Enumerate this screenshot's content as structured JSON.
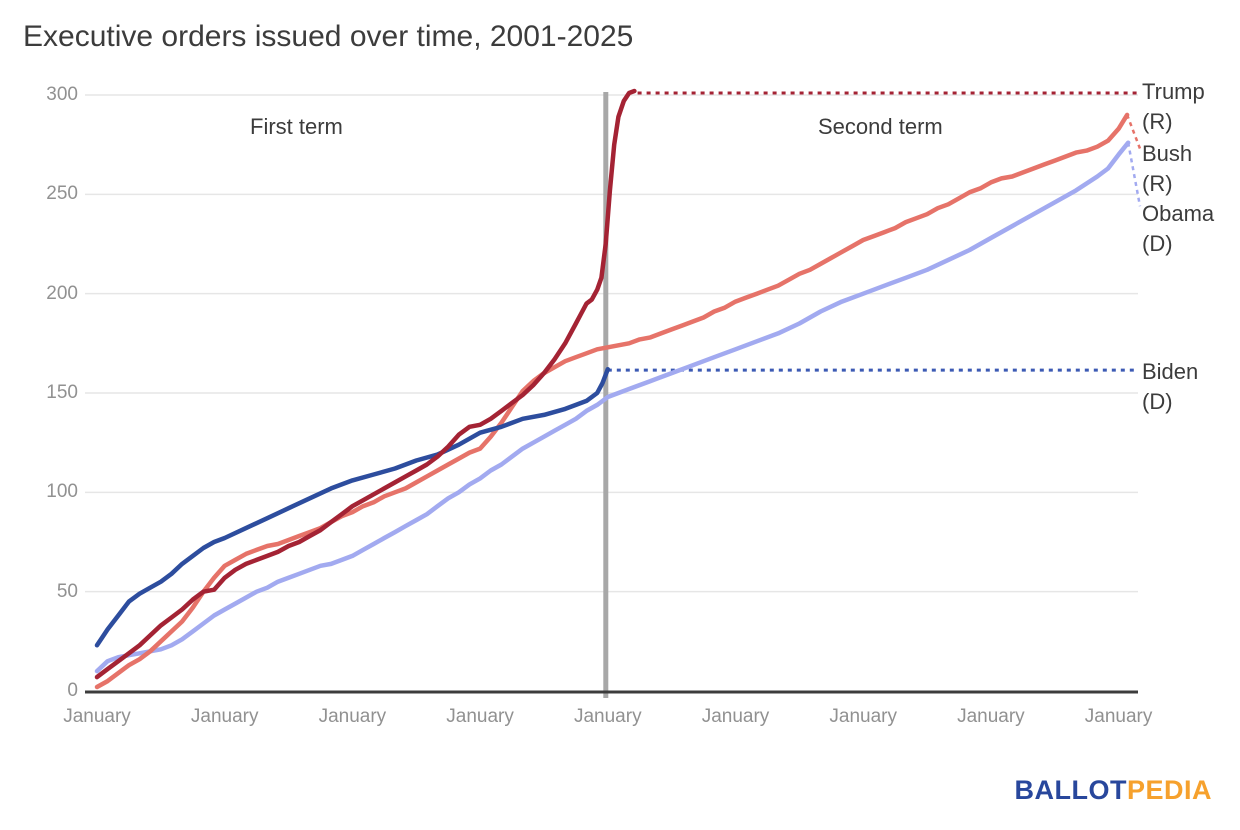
{
  "title": "Executive orders issued over time, 2001-2025",
  "annotations": {
    "first_term": "First term",
    "second_term": "Second term"
  },
  "logo": {
    "part1": "BALLOT",
    "part2": "PEDIA"
  },
  "chart_data": {
    "type": "line",
    "title": "Executive orders issued over time, 2001-2025",
    "xlabel": "",
    "ylabel": "",
    "x_unit": "months since inauguration",
    "x_tick_labels": [
      "January",
      "January",
      "January",
      "January",
      "January",
      "January",
      "January",
      "January",
      "January"
    ],
    "y_ticks": [
      0,
      50,
      100,
      150,
      200,
      250,
      300
    ],
    "ylim": [
      0,
      300
    ],
    "grid": true,
    "divider_month": 48,
    "colors": {
      "trump": "#a42334",
      "bush": "#e67369",
      "obama": "#a2aaf0",
      "biden": "#2d4d9e",
      "biden_dotted": "#3c5ab4",
      "divider": "#a8a8a8",
      "gridline": "#e6e6e6",
      "axis": "#3c3c3c",
      "tick_text": "#919191"
    },
    "series": [
      {
        "name": "trump",
        "name_label": "Trump",
        "party_label": "(R)",
        "color": "#a42334",
        "points": [
          [
            0,
            7
          ],
          [
            1,
            11
          ],
          [
            2,
            15
          ],
          [
            3,
            19
          ],
          [
            4,
            23
          ],
          [
            5,
            28
          ],
          [
            6,
            33
          ],
          [
            7,
            37
          ],
          [
            8,
            41
          ],
          [
            9,
            46
          ],
          [
            10,
            50
          ],
          [
            11,
            51
          ],
          [
            12,
            57
          ],
          [
            13,
            61
          ],
          [
            14,
            64
          ],
          [
            15,
            66
          ],
          [
            16,
            68
          ],
          [
            17,
            70
          ],
          [
            18,
            73
          ],
          [
            19,
            75
          ],
          [
            20,
            78
          ],
          [
            21,
            81
          ],
          [
            22,
            85
          ],
          [
            23,
            89
          ],
          [
            24,
            93
          ],
          [
            25,
            96
          ],
          [
            26,
            99
          ],
          [
            27,
            102
          ],
          [
            28,
            105
          ],
          [
            29,
            108
          ],
          [
            30,
            111
          ],
          [
            31,
            114
          ],
          [
            32,
            118
          ],
          [
            33,
            123
          ],
          [
            34,
            129
          ],
          [
            35,
            133
          ],
          [
            36,
            134
          ],
          [
            37,
            137
          ],
          [
            38,
            141
          ],
          [
            39,
            145
          ],
          [
            40,
            149
          ],
          [
            41,
            154
          ],
          [
            42,
            160
          ],
          [
            43,
            167
          ],
          [
            44,
            175
          ],
          [
            45,
            185
          ],
          [
            45.5,
            190
          ],
          [
            46,
            195
          ],
          [
            46.5,
            197
          ],
          [
            47,
            202
          ],
          [
            47.4,
            208
          ],
          [
            47.8,
            225
          ],
          [
            48.2,
            252
          ],
          [
            48.6,
            275
          ],
          [
            49,
            289
          ],
          [
            49.5,
            297
          ],
          [
            50,
            301
          ],
          [
            50.5,
            302
          ]
        ],
        "extension": {
          "kind": "dotted-horizontal",
          "from_month": 50.8,
          "to_month": 97.7,
          "value": 301
        }
      },
      {
        "name": "bush",
        "name_label": "Bush",
        "party_label": "(R)",
        "color": "#e67369",
        "points": [
          [
            0,
            2
          ],
          [
            1,
            5
          ],
          [
            2,
            9
          ],
          [
            3,
            13
          ],
          [
            4,
            16
          ],
          [
            5,
            20
          ],
          [
            6,
            25
          ],
          [
            7,
            30
          ],
          [
            8,
            35
          ],
          [
            9,
            42
          ],
          [
            10,
            50
          ],
          [
            11,
            57
          ],
          [
            12,
            63
          ],
          [
            13,
            66
          ],
          [
            14,
            69
          ],
          [
            15,
            71
          ],
          [
            16,
            73
          ],
          [
            17,
            74
          ],
          [
            18,
            76
          ],
          [
            19,
            78
          ],
          [
            20,
            80
          ],
          [
            21,
            82
          ],
          [
            22,
            85
          ],
          [
            23,
            88
          ],
          [
            24,
            90
          ],
          [
            25,
            93
          ],
          [
            26,
            95
          ],
          [
            27,
            98
          ],
          [
            28,
            100
          ],
          [
            29,
            102
          ],
          [
            30,
            105
          ],
          [
            31,
            108
          ],
          [
            32,
            111
          ],
          [
            33,
            114
          ],
          [
            34,
            117
          ],
          [
            35,
            120
          ],
          [
            36,
            122
          ],
          [
            37,
            128
          ],
          [
            38,
            135
          ],
          [
            39,
            143
          ],
          [
            40,
            151
          ],
          [
            41,
            156
          ],
          [
            42,
            160
          ],
          [
            43,
            163
          ],
          [
            44,
            166
          ],
          [
            45,
            168
          ],
          [
            46,
            170
          ],
          [
            47,
            172
          ],
          [
            48,
            173
          ],
          [
            49,
            174
          ],
          [
            50,
            175
          ],
          [
            51,
            177
          ],
          [
            52,
            178
          ],
          [
            53,
            180
          ],
          [
            54,
            182
          ],
          [
            55,
            184
          ],
          [
            56,
            186
          ],
          [
            57,
            188
          ],
          [
            58,
            191
          ],
          [
            59,
            193
          ],
          [
            60,
            196
          ],
          [
            61,
            198
          ],
          [
            62,
            200
          ],
          [
            63,
            202
          ],
          [
            64,
            204
          ],
          [
            65,
            207
          ],
          [
            66,
            210
          ],
          [
            67,
            212
          ],
          [
            68,
            215
          ],
          [
            69,
            218
          ],
          [
            70,
            221
          ],
          [
            71,
            224
          ],
          [
            72,
            227
          ],
          [
            73,
            229
          ],
          [
            74,
            231
          ],
          [
            75,
            233
          ],
          [
            76,
            236
          ],
          [
            77,
            238
          ],
          [
            78,
            240
          ],
          [
            79,
            243
          ],
          [
            80,
            245
          ],
          [
            81,
            248
          ],
          [
            82,
            251
          ],
          [
            83,
            253
          ],
          [
            84,
            256
          ],
          [
            85,
            258
          ],
          [
            86,
            259
          ],
          [
            87,
            261
          ],
          [
            88,
            263
          ],
          [
            89,
            265
          ],
          [
            90,
            267
          ],
          [
            91,
            269
          ],
          [
            92,
            271
          ],
          [
            93,
            272
          ],
          [
            94,
            274
          ],
          [
            95,
            277
          ],
          [
            96,
            283
          ],
          [
            96.8,
            290
          ]
        ],
        "extension": {
          "kind": "dashed-leader",
          "end_value": 273
        }
      },
      {
        "name": "obama",
        "name_label": "Obama",
        "party_label": "(D)",
        "color": "#a2aaf0",
        "points": [
          [
            0,
            10
          ],
          [
            1,
            15
          ],
          [
            2,
            17
          ],
          [
            3,
            18
          ],
          [
            4,
            19
          ],
          [
            5,
            20
          ],
          [
            6,
            21
          ],
          [
            7,
            23
          ],
          [
            8,
            26
          ],
          [
            9,
            30
          ],
          [
            10,
            34
          ],
          [
            11,
            38
          ],
          [
            12,
            41
          ],
          [
            13,
            44
          ],
          [
            14,
            47
          ],
          [
            15,
            50
          ],
          [
            16,
            52
          ],
          [
            17,
            55
          ],
          [
            18,
            57
          ],
          [
            19,
            59
          ],
          [
            20,
            61
          ],
          [
            21,
            63
          ],
          [
            22,
            64
          ],
          [
            23,
            66
          ],
          [
            24,
            68
          ],
          [
            25,
            71
          ],
          [
            26,
            74
          ],
          [
            27,
            77
          ],
          [
            28,
            80
          ],
          [
            29,
            83
          ],
          [
            30,
            86
          ],
          [
            31,
            89
          ],
          [
            32,
            93
          ],
          [
            33,
            97
          ],
          [
            34,
            100
          ],
          [
            35,
            104
          ],
          [
            36,
            107
          ],
          [
            37,
            111
          ],
          [
            38,
            114
          ],
          [
            39,
            118
          ],
          [
            40,
            122
          ],
          [
            41,
            125
          ],
          [
            42,
            128
          ],
          [
            43,
            131
          ],
          [
            44,
            134
          ],
          [
            45,
            137
          ],
          [
            46,
            141
          ],
          [
            47,
            144
          ],
          [
            48,
            148
          ],
          [
            50,
            152
          ],
          [
            52,
            156
          ],
          [
            54,
            160
          ],
          [
            56,
            164
          ],
          [
            58,
            168
          ],
          [
            60,
            172
          ],
          [
            62,
            176
          ],
          [
            64,
            180
          ],
          [
            66,
            185
          ],
          [
            68,
            191
          ],
          [
            70,
            196
          ],
          [
            72,
            200
          ],
          [
            74,
            204
          ],
          [
            76,
            208
          ],
          [
            78,
            212
          ],
          [
            80,
            217
          ],
          [
            82,
            222
          ],
          [
            84,
            228
          ],
          [
            86,
            234
          ],
          [
            88,
            240
          ],
          [
            90,
            246
          ],
          [
            92,
            252
          ],
          [
            94,
            259
          ],
          [
            95,
            263
          ],
          [
            96,
            270
          ],
          [
            96.9,
            276
          ]
        ],
        "extension": {
          "kind": "dashed-leader",
          "end_value": 244
        }
      },
      {
        "name": "biden",
        "name_label": "Biden",
        "party_label": "(D)",
        "color": "#2d4d9e",
        "points": [
          [
            0,
            23
          ],
          [
            1,
            31
          ],
          [
            2,
            38
          ],
          [
            3,
            45
          ],
          [
            4,
            49
          ],
          [
            5,
            52
          ],
          [
            6,
            55
          ],
          [
            7,
            59
          ],
          [
            8,
            64
          ],
          [
            9,
            68
          ],
          [
            10,
            72
          ],
          [
            11,
            75
          ],
          [
            12,
            77
          ],
          [
            14,
            82
          ],
          [
            16,
            87
          ],
          [
            18,
            92
          ],
          [
            20,
            97
          ],
          [
            22,
            102
          ],
          [
            24,
            106
          ],
          [
            26,
            109
          ],
          [
            28,
            112
          ],
          [
            30,
            116
          ],
          [
            32,
            119
          ],
          [
            34,
            124
          ],
          [
            36,
            130
          ],
          [
            38,
            133
          ],
          [
            40,
            137
          ],
          [
            42,
            139
          ],
          [
            44,
            142
          ],
          [
            45,
            144
          ],
          [
            46,
            146
          ],
          [
            47,
            150
          ],
          [
            47.5,
            155
          ],
          [
            48,
            162
          ]
        ],
        "extension": {
          "kind": "dotted-horizontal",
          "from_month": 48,
          "to_month": 97.7,
          "value": 161.5,
          "color": "#3c5ab4"
        }
      }
    ]
  }
}
